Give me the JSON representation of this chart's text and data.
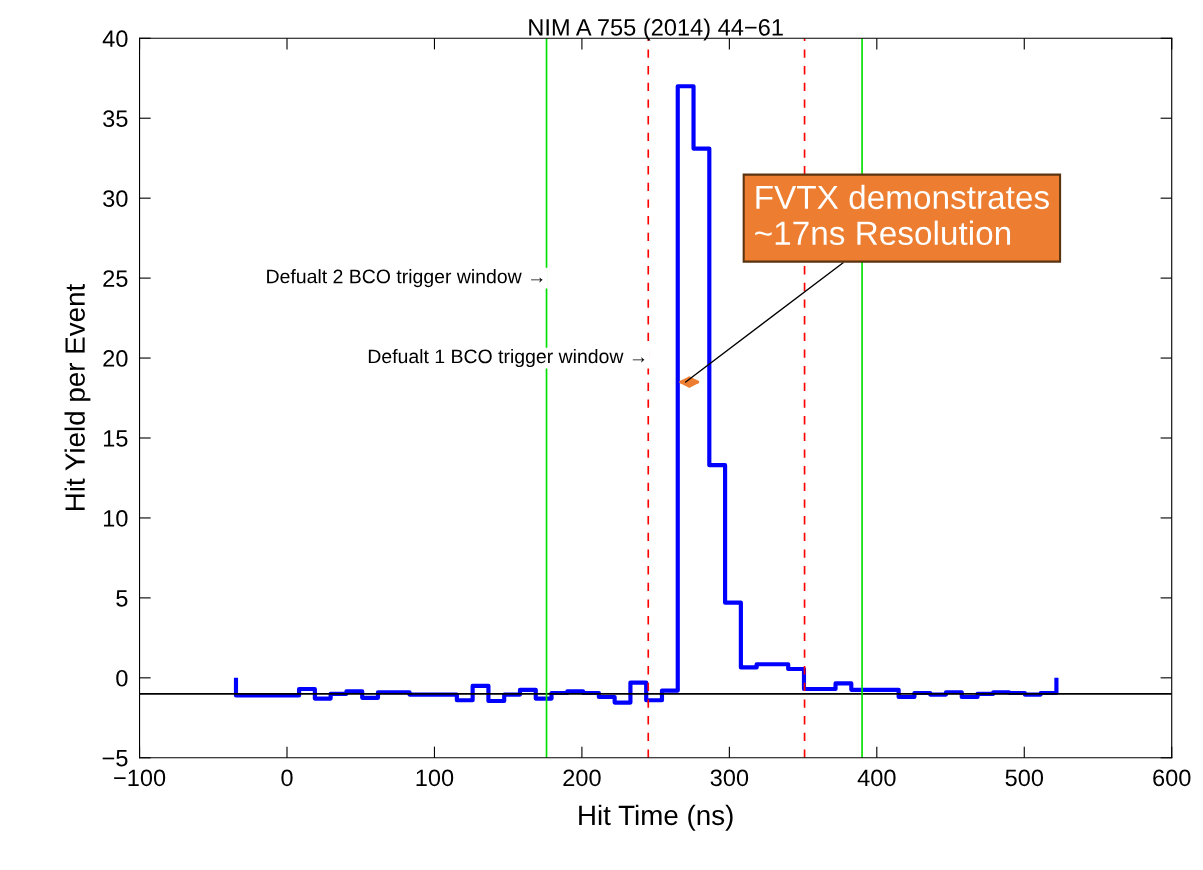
{
  "chart_data": {
    "type": "histogram",
    "title": "NIM A 755 (2014) 44−61",
    "xlabel": "Hit Time (ns)",
    "ylabel": "Hit Yield per Event",
    "bins": [
      -34.6,
      -23.9,
      -13.2,
      -2.5,
      8.2,
      18.9,
      29.6,
      40.3,
      51.0,
      61.7,
      72.4,
      83.1,
      93.8,
      104.5,
      115.2,
      125.9,
      136.6,
      147.3,
      158.0,
      168.7,
      179.4,
      190.1,
      200.8,
      211.5,
      222.2,
      232.9,
      243.6,
      254.3,
      265.0,
      275.7,
      286.4,
      297.1,
      307.8,
      318.5,
      329.2,
      339.9,
      350.6,
      361.3,
      372.0,
      382.7,
      393.4,
      404.1,
      414.8,
      425.5,
      436.2,
      446.9,
      457.6,
      468.3,
      479.0,
      489.7,
      500.4,
      511.1,
      521.8
    ],
    "values": [
      -1.1,
      -1.1,
      -1.1,
      -1.1,
      -0.7,
      -1.3,
      -1.0,
      -0.85,
      -1.25,
      -0.9,
      -0.9,
      -1.05,
      -1.05,
      -1.05,
      -1.4,
      -0.5,
      -1.45,
      -1.05,
      -0.75,
      -1.3,
      -0.95,
      -0.85,
      -0.95,
      -1.2,
      -1.55,
      -0.3,
      -1.4,
      -0.8,
      37,
      33.1,
      13.3,
      4.7,
      0.65,
      0.85,
      0.85,
      0.55,
      -0.7,
      -0.7,
      -0.35,
      -0.75,
      -0.75,
      -0.75,
      -1.2,
      -0.95,
      -1.05,
      -0.9,
      -1.2,
      -1.0,
      -0.9,
      -0.95,
      -1.05,
      -0.95
    ],
    "color": "#0000ff",
    "xlim": [
      -100,
      600
    ],
    "xticks": [
      -100,
      0,
      100,
      200,
      300,
      400,
      500,
      600
    ],
    "ylim": [
      -5,
      40
    ],
    "yticks": [
      -5,
      0,
      5,
      10,
      15,
      20,
      25,
      30,
      35,
      40
    ],
    "grid": false,
    "legend": false,
    "ref_lines": [
      {
        "axis": "y",
        "value": -1,
        "color": "#000000",
        "line_style": "solid"
      },
      {
        "axis": "x",
        "value": 176,
        "color": "#00e000",
        "line_style": "solid"
      },
      {
        "axis": "x",
        "value": 390,
        "color": "#00e000",
        "line_style": "solid"
      },
      {
        "axis": "x",
        "value": 245,
        "color": "#ff0000",
        "line_style": "dashed"
      },
      {
        "axis": "x",
        "value": 351,
        "color": "#ff0000",
        "line_style": "dashed"
      }
    ],
    "annotations": [
      {
        "text": "Defualt 2 BCO trigger window →",
        "x": 176,
        "y": 25
      },
      {
        "text": "Defualt 1 BCO trigger window →",
        "x": 245,
        "y": 20
      },
      "FVTX demonstrates\n~17ns Resolution"
    ]
  }
}
